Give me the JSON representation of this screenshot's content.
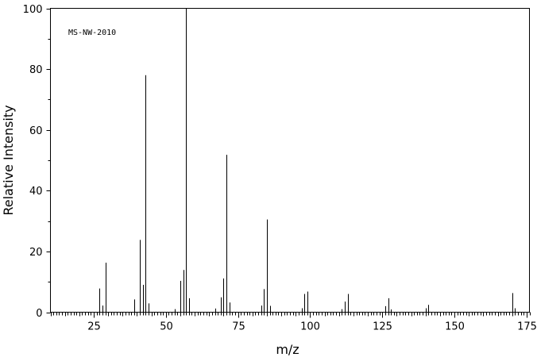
{
  "chart_data": {
    "type": "bar",
    "title": "",
    "xlabel": "m/z",
    "ylabel": "Relative Intensity",
    "xlim": [
      10,
      176
    ],
    "ylim": [
      0,
      100
    ],
    "x_ticks": [
      25,
      50,
      75,
      100,
      125,
      150,
      175
    ],
    "y_ticks": [
      0,
      20,
      40,
      60,
      80,
      100
    ],
    "grid": false,
    "annotation": "MS-NW-2010",
    "peaks": [
      {
        "mz": 27,
        "intensity": 7.8
      },
      {
        "mz": 28,
        "intensity": 2.2
      },
      {
        "mz": 29,
        "intensity": 16.3
      },
      {
        "mz": 39,
        "intensity": 4.2
      },
      {
        "mz": 41,
        "intensity": 23.8
      },
      {
        "mz": 42,
        "intensity": 9.0
      },
      {
        "mz": 43,
        "intensity": 78.0
      },
      {
        "mz": 44,
        "intensity": 2.9
      },
      {
        "mz": 53,
        "intensity": 1.0
      },
      {
        "mz": 55,
        "intensity": 10.3
      },
      {
        "mz": 56,
        "intensity": 13.9
      },
      {
        "mz": 57,
        "intensity": 100.0
      },
      {
        "mz": 58,
        "intensity": 4.6
      },
      {
        "mz": 67,
        "intensity": 1.2
      },
      {
        "mz": 69,
        "intensity": 4.9
      },
      {
        "mz": 70,
        "intensity": 11.1
      },
      {
        "mz": 71,
        "intensity": 51.8
      },
      {
        "mz": 72,
        "intensity": 3.2
      },
      {
        "mz": 83,
        "intensity": 2.2
      },
      {
        "mz": 84,
        "intensity": 7.6
      },
      {
        "mz": 85,
        "intensity": 30.5
      },
      {
        "mz": 86,
        "intensity": 2.1
      },
      {
        "mz": 97,
        "intensity": 1.3
      },
      {
        "mz": 98,
        "intensity": 6.0
      },
      {
        "mz": 99,
        "intensity": 6.8
      },
      {
        "mz": 111,
        "intensity": 1.0
      },
      {
        "mz": 112,
        "intensity": 3.5
      },
      {
        "mz": 113,
        "intensity": 6.0
      },
      {
        "mz": 126,
        "intensity": 2.0
      },
      {
        "mz": 127,
        "intensity": 4.6
      },
      {
        "mz": 128,
        "intensity": 0.9
      },
      {
        "mz": 140,
        "intensity": 1.3
      },
      {
        "mz": 141,
        "intensity": 2.4
      },
      {
        "mz": 170,
        "intensity": 6.3
      },
      {
        "mz": 171,
        "intensity": 1.3
      }
    ]
  }
}
